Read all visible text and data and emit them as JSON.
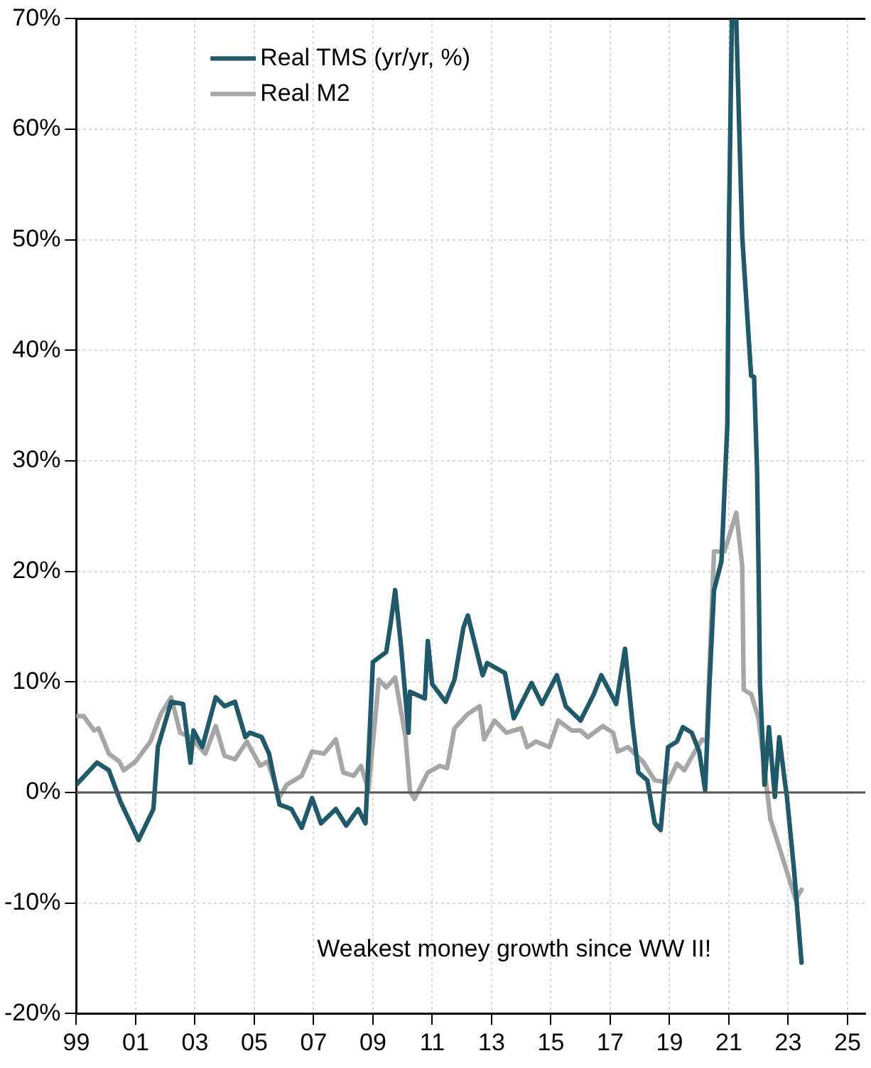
{
  "chart_data": {
    "type": "line",
    "series": [
      {
        "name": "Real TMS (yr/yr, %)",
        "color": "#1f5a6a",
        "x": [
          1999.0,
          1999.7,
          2000.1,
          2000.5,
          2001.1,
          2001.6,
          2001.75,
          2002.2,
          2002.6,
          2002.85,
          2002.95,
          2003.25,
          2003.7,
          2004.0,
          2004.35,
          2004.7,
          2004.85,
          2005.25,
          2005.5,
          2005.85,
          2006.25,
          2006.6,
          2006.95,
          2007.25,
          2007.75,
          2008.1,
          2008.5,
          2008.75,
          2009.0,
          2009.45,
          2009.6,
          2009.75,
          2009.95,
          2010.2,
          2010.25,
          2010.75,
          2010.85,
          2011.0,
          2011.45,
          2011.75,
          2012.05,
          2012.2,
          2012.7,
          2012.85,
          2013.45,
          2013.75,
          2014.35,
          2014.7,
          2015.2,
          2015.5,
          2016.0,
          2016.45,
          2016.7,
          2017.2,
          2017.5,
          2017.75,
          2017.95,
          2018.25,
          2018.5,
          2018.7,
          2018.95,
          2019.25,
          2019.45,
          2019.75,
          2020.0,
          2020.2,
          2020.35,
          2020.5,
          2020.75,
          2020.95,
          2021.0,
          2021.1,
          2021.25,
          2021.45,
          2021.75,
          2021.85,
          2021.95,
          2022.0,
          2022.05,
          2022.2,
          2022.35,
          2022.55,
          2022.7,
          2022.9,
          2022.95,
          2023.2,
          2023.45
        ],
        "values": [
          0.7,
          2.7,
          2.0,
          -0.9,
          -4.3,
          -1.5,
          4.1,
          8.2,
          8.0,
          2.7,
          5.6,
          4.1,
          8.6,
          7.8,
          8.2,
          5.0,
          5.4,
          5.0,
          3.5,
          -1.1,
          -1.5,
          -3.2,
          -0.5,
          -2.8,
          -1.5,
          -3.0,
          -1.5,
          -2.8,
          11.8,
          12.7,
          15.3,
          18.3,
          13.2,
          5.4,
          9.1,
          8.5,
          13.7,
          9.8,
          8.2,
          10.2,
          14.9,
          16.0,
          10.6,
          11.7,
          10.8,
          6.7,
          9.9,
          8.0,
          10.6,
          7.8,
          6.5,
          8.9,
          10.6,
          8.0,
          13.0,
          6.3,
          1.8,
          1.1,
          -2.8,
          -3.4,
          4.1,
          4.6,
          5.9,
          5.4,
          3.7,
          0.2,
          10.0,
          18.3,
          20.9,
          33.4,
          50.7,
          69.8,
          69.8,
          50.3,
          37.7,
          37.6,
          29.2,
          20.5,
          9.8,
          0.7,
          5.9,
          -0.4,
          5.0,
          0.7,
          -0.2,
          -7.1,
          -15.4
        ]
      },
      {
        "name": "Real M2",
        "color": "#a6a6a6",
        "x": [
          1999.0,
          1999.25,
          1999.6,
          1999.75,
          2000.1,
          2000.45,
          2000.6,
          2001.0,
          2001.5,
          2001.85,
          2002.2,
          2002.5,
          2002.85,
          2003.35,
          2003.7,
          2004.0,
          2004.35,
          2004.75,
          2005.2,
          2005.45,
          2005.85,
          2006.1,
          2006.6,
          2006.95,
          2007.35,
          2007.75,
          2008.0,
          2008.35,
          2008.6,
          2008.85,
          2009.2,
          2009.45,
          2009.75,
          2010.1,
          2010.25,
          2010.4,
          2010.85,
          2011.25,
          2011.5,
          2011.75,
          2012.2,
          2012.6,
          2012.75,
          2013.1,
          2013.5,
          2014.0,
          2014.2,
          2014.5,
          2014.95,
          2015.25,
          2015.7,
          2016.0,
          2016.25,
          2016.75,
          2017.1,
          2017.25,
          2017.6,
          2018.1,
          2018.5,
          2018.95,
          2019.25,
          2019.5,
          2019.85,
          2020.1,
          2020.25,
          2020.5,
          2020.85,
          2021.25,
          2021.45,
          2021.5,
          2021.75,
          2022.0,
          2022.4,
          2022.95,
          2023.25,
          2023.45
        ],
        "values": [
          6.9,
          6.9,
          5.6,
          5.8,
          3.5,
          2.8,
          2.0,
          2.8,
          4.6,
          7.1,
          8.6,
          5.4,
          5.0,
          3.5,
          6.0,
          3.3,
          3.0,
          4.6,
          2.4,
          2.8,
          -0.4,
          0.7,
          1.5,
          3.7,
          3.5,
          4.8,
          1.8,
          1.5,
          2.4,
          0.2,
          10.2,
          9.5,
          10.4,
          5.0,
          0.1,
          -0.6,
          1.8,
          2.4,
          2.2,
          5.8,
          7.1,
          7.8,
          4.8,
          6.5,
          5.4,
          5.8,
          4.1,
          4.6,
          4.1,
          6.5,
          5.6,
          5.6,
          5.0,
          6.0,
          5.4,
          3.7,
          4.1,
          2.8,
          1.1,
          0.9,
          2.6,
          2.0,
          3.7,
          4.8,
          4.6,
          21.8,
          21.8,
          25.3,
          20.5,
          9.3,
          8.9,
          6.7,
          -2.4,
          -7.1,
          -9.7,
          -8.8
        ]
      }
    ],
    "xlim": [
      1999,
      2025.6
    ],
    "xticks": [
      {
        "value": 1999,
        "label": "99"
      },
      {
        "value": 2001,
        "label": "01"
      },
      {
        "value": 2003,
        "label": "03"
      },
      {
        "value": 2005,
        "label": "05"
      },
      {
        "value": 2007,
        "label": "07"
      },
      {
        "value": 2009,
        "label": "09"
      },
      {
        "value": 2011,
        "label": "11"
      },
      {
        "value": 2013,
        "label": "13"
      },
      {
        "value": 2015,
        "label": "15"
      },
      {
        "value": 2017,
        "label": "17"
      },
      {
        "value": 2019,
        "label": "19"
      },
      {
        "value": 2021,
        "label": "21"
      },
      {
        "value": 2023,
        "label": "23"
      },
      {
        "value": 2025,
        "label": "25"
      }
    ],
    "ylim": [
      -20,
      70
    ],
    "yticks": [
      {
        "value": -20,
        "label": "-20%"
      },
      {
        "value": -10,
        "label": "-10%"
      },
      {
        "value": 0,
        "label": "0%"
      },
      {
        "value": 10,
        "label": "10%"
      },
      {
        "value": 20,
        "label": "20%"
      },
      {
        "value": 30,
        "label": "30%"
      },
      {
        "value": 40,
        "label": "40%"
      },
      {
        "value": 50,
        "label": "50%"
      },
      {
        "value": 60,
        "label": "60%"
      },
      {
        "value": 70,
        "label": "70%"
      }
    ],
    "grid": true,
    "legend": "top",
    "marker": "none",
    "line_style": "solid",
    "annotations": [
      "Weakest money growth since WW II!"
    ]
  }
}
